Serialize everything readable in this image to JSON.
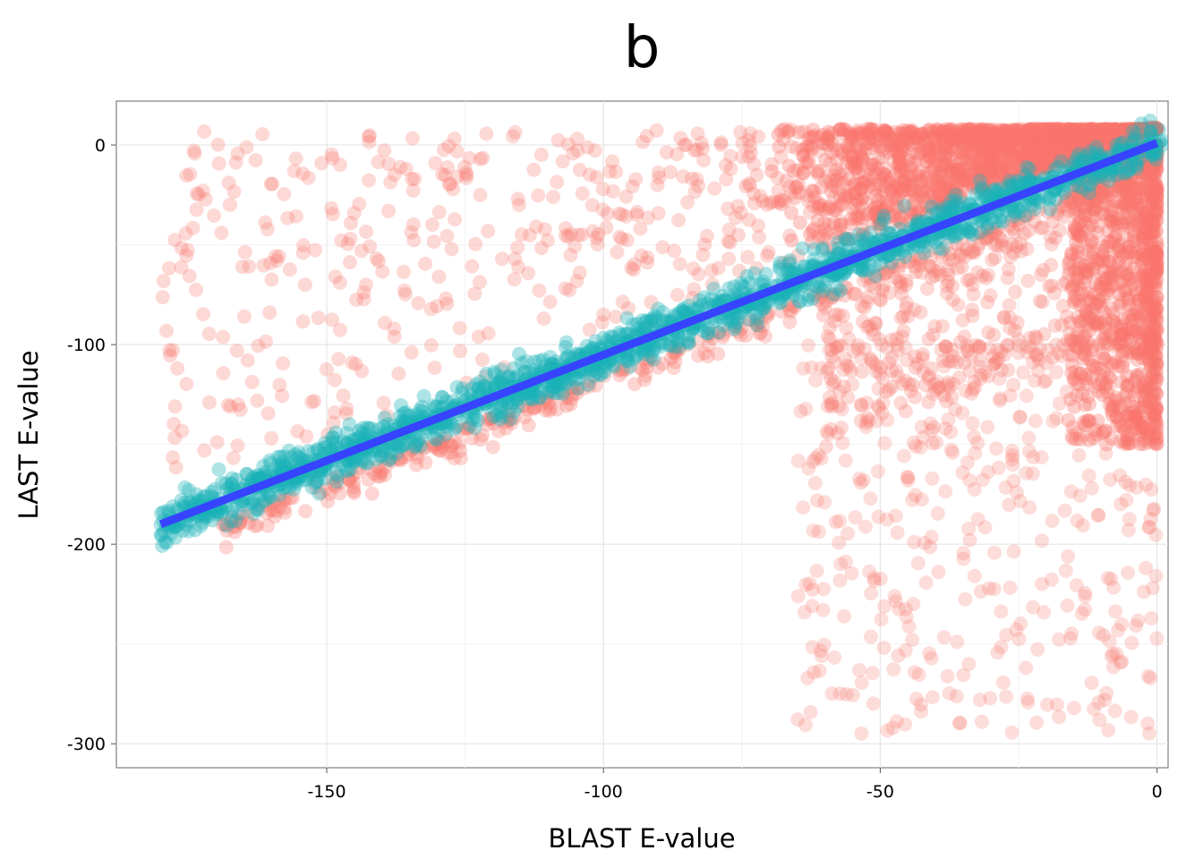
{
  "chart_data": {
    "type": "scatter",
    "title": "b",
    "xlabel": "BLAST E-value",
    "ylabel": "LAST E-value",
    "xlim": [
      -188,
      2
    ],
    "ylim": [
      -312,
      22
    ],
    "x_ticks": [
      -150,
      -100,
      -50,
      0
    ],
    "x_tick_labels": [
      "-150",
      "-100",
      "-50",
      "0"
    ],
    "y_ticks": [
      -300,
      -200,
      -100,
      0
    ],
    "y_tick_labels": [
      "-300",
      "-200",
      "-100",
      "0"
    ],
    "grid": true,
    "legend": "none",
    "series": [
      {
        "color": "#F8766D",
        "description_points": "off-diagonal points (scattered)",
        "clusters": [
          {
            "region": "upper-left-triangle",
            "x_range": [
              -180,
              0
            ],
            "y_range": [
              -130,
              8
            ]
          },
          {
            "region": "upper-right-dense",
            "x_range": [
              -70,
              0
            ],
            "y_range": [
              -60,
              8
            ]
          },
          {
            "region": "right-column-dense",
            "x_range": [
              -15,
              0
            ],
            "y_range": [
              -150,
              0
            ]
          },
          {
            "region": "lower-right-sparse",
            "x_range": [
              -65,
              0
            ],
            "y_range": [
              -300,
              -100
            ]
          }
        ]
      },
      {
        "color": "#19B2B7",
        "description_points": "near-diagonal points",
        "band": {
          "x_range": [
            -180,
            0
          ],
          "slope": 1.06,
          "intercept": 1,
          "half_width": 10
        }
      }
    ],
    "fit_line": {
      "color": "#3644FF",
      "x": [
        -180,
        0
      ],
      "y": [
        -190,
        1
      ]
    }
  }
}
